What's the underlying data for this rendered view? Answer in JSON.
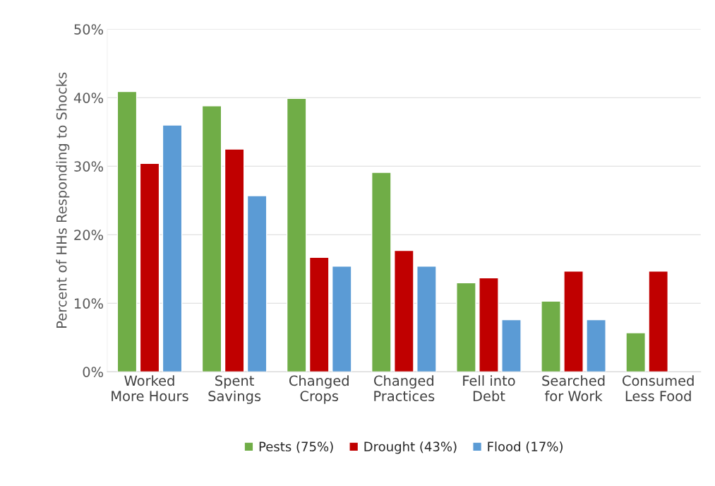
{
  "chart_data": {
    "type": "bar",
    "ylabel": "Percent of HHs Responding to Shocks",
    "categories": [
      "Worked\nMore Hours",
      "Spent\nSavings",
      "Changed\nCrops",
      "Changed\nPractices",
      "Fell into\nDebt",
      "Searched\nfor Work",
      "Consumed\nLess Food"
    ],
    "series": [
      {
        "name": "Pests (75%)",
        "color": "#70ad47",
        "values": [
          40.9,
          38.8,
          39.9,
          29.1,
          13.0,
          10.3,
          5.7
        ]
      },
      {
        "name": "Drought (43%)",
        "color": "#c00000",
        "values": [
          30.4,
          32.5,
          16.7,
          17.7,
          13.7,
          14.7,
          14.7
        ]
      },
      {
        "name": "Flood (17%)",
        "color": "#5b9bd5",
        "values": [
          36.0,
          25.7,
          15.4,
          15.4,
          7.6,
          7.6,
          null
        ]
      }
    ],
    "ylim": [
      0,
      50
    ],
    "yticks": [
      {
        "value": 0,
        "label": "0%"
      },
      {
        "value": 10,
        "label": "10%"
      },
      {
        "value": 20,
        "label": "20%"
      },
      {
        "value": 30,
        "label": "30%"
      },
      {
        "value": 40,
        "label": "40%"
      },
      {
        "value": 50,
        "label": "50%"
      }
    ],
    "grid": "y",
    "legend": "bottom"
  }
}
